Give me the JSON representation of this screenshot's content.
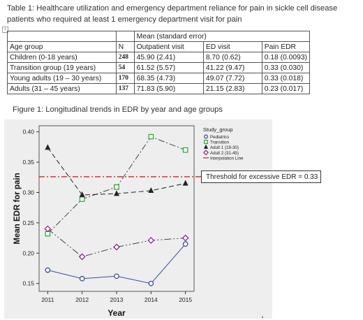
{
  "table": {
    "caption": "Table 1: Healthcare utilization and emergency department reliance for pain in sickle cell disease patients who required at least 1 emergency department visit for pain",
    "mean_header": "Mean (standard error)",
    "columns": [
      "Age group",
      "N",
      "Outpatient visit",
      "ED visit",
      "Pain EDR"
    ],
    "rows": [
      {
        "group": "Children (0-18 years)",
        "n": "248",
        "outpatient": "45.90 (2.41)",
        "ed": "8.70 (0.62)",
        "edr": "0.18 (0.0093)"
      },
      {
        "group": "Transition group (19 years)",
        "n": "54",
        "outpatient": "61.52 (5.57)",
        "ed": "41.22 (9.47)",
        "edr": "0.33 (0.030)"
      },
      {
        "group": "Young adults (19 – 30 years)",
        "n": "170",
        "outpatient": "68.35 (4.73)",
        "ed": "49.07 (7.72)",
        "edr": "0.33 (0.018)"
      },
      {
        "group": "Adults (31 – 45 years)",
        "n": "137",
        "outpatient": "71.83 (5.90)",
        "ed": "21.15 (2.83)",
        "edr": "0.23 (0.017)"
      }
    ]
  },
  "figure": {
    "caption": "Figure 1: Longitudinal trends in EDR by year and age groups",
    "threshold_label": "Threshold for excessive EDR = 0.33"
  },
  "chart_data": {
    "type": "line",
    "xlabel": "Year",
    "ylabel": "Mean EDR for pain",
    "x": [
      2011,
      2012,
      2013,
      2014,
      2015
    ],
    "xlim": [
      2010.75,
      2015.25
    ],
    "ylim": [
      0.137,
      0.41
    ],
    "yticks": [
      0.15,
      0.2,
      0.25,
      0.3,
      0.35,
      0.4
    ],
    "ytick_labels": [
      "0.15",
      "0.20",
      "0.25",
      "0.30",
      "0.35",
      "0.40"
    ],
    "legend_title": "Study_group",
    "legend_position": "top-right",
    "grid": false,
    "series": [
      {
        "name": "Pediatrics",
        "values": [
          0.172,
          0.158,
          0.162,
          0.15,
          0.215
        ],
        "color": "#3a4aa0",
        "marker": "circle",
        "dash": ""
      },
      {
        "name": "Transition",
        "values": [
          0.232,
          0.289,
          0.309,
          0.392,
          0.37
        ],
        "color": "#34a83a",
        "marker": "square",
        "dash": "9 3 2 3"
      },
      {
        "name": "Adult 1 (18-30)",
        "values": [
          0.374,
          0.296,
          0.298,
          0.303,
          0.315
        ],
        "color": "#222222",
        "marker": "triangle",
        "dash": "7 4"
      },
      {
        "name": "Adult 2 (31-45)",
        "values": [
          0.24,
          0.194,
          0.21,
          0.221,
          0.225
        ],
        "color": "#8b2a8f",
        "marker": "diamond",
        "dash": "10 3 2 3 2 3"
      }
    ],
    "reference_lines": [
      {
        "name": "Interpolation Line",
        "y": 0.326,
        "color": "#d42020",
        "dash": "8 3 2 3"
      }
    ]
  }
}
